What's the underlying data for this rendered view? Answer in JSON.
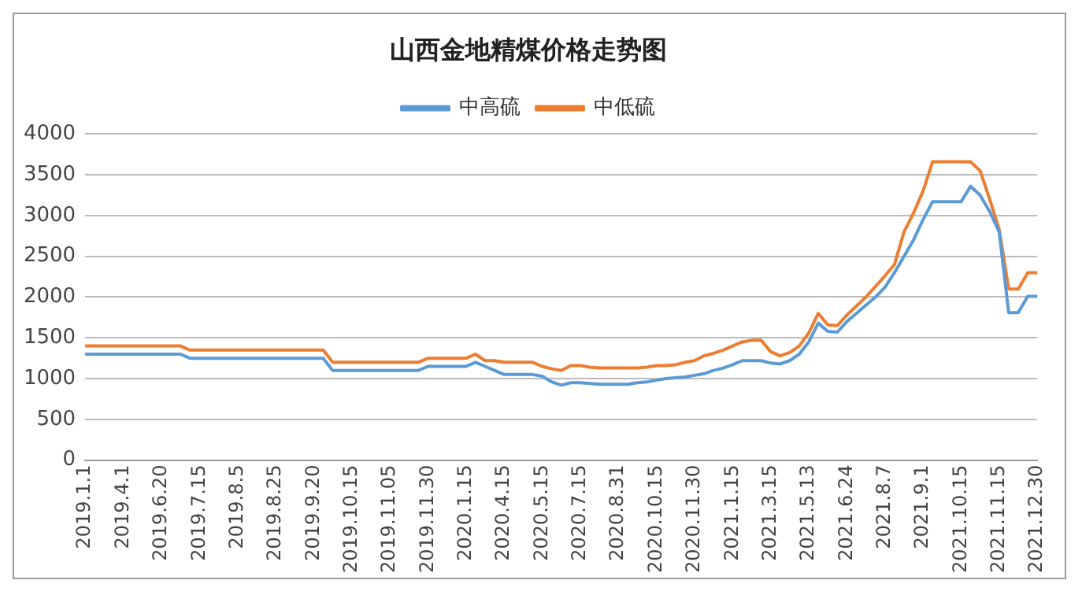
{
  "chart_data": {
    "type": "line",
    "title": "山西金地精煤价格走势图",
    "categories": [
      "2019.1.1",
      null,
      null,
      null,
      "2019.4.1",
      null,
      null,
      null,
      "2019.6.20",
      null,
      null,
      null,
      "2019.7.15",
      null,
      null,
      null,
      "2019.8.5",
      null,
      null,
      null,
      "2019.8.25",
      null,
      null,
      null,
      "2019.9.20",
      null,
      null,
      null,
      "2019.10.15",
      null,
      null,
      null,
      "2019.11.05",
      null,
      null,
      null,
      "2019.11.30",
      null,
      null,
      null,
      "2020.1.15",
      null,
      null,
      null,
      "2020.4.15",
      null,
      null,
      null,
      "2020.5.15",
      null,
      null,
      null,
      "2020.7.15",
      null,
      null,
      null,
      "2020.8.31",
      null,
      null,
      null,
      "2020.10.15",
      null,
      null,
      null,
      "2020.11.30",
      null,
      null,
      null,
      "2021.1.15",
      null,
      null,
      null,
      "2021.3.15",
      null,
      null,
      null,
      "2021.5.13",
      null,
      null,
      null,
      "2021.6.24",
      null,
      null,
      null,
      "2021.8.7",
      null,
      null,
      null,
      "2021.9.1",
      null,
      null,
      null,
      "2021.10.15",
      null,
      null,
      null,
      "2021.11.15",
      null,
      null,
      null,
      "2021.12.30"
    ],
    "series": [
      {
        "name": "中高硫",
        "color": "#5b9bd5",
        "values": [
          1300,
          1300,
          1300,
          1300,
          1300,
          1300,
          1300,
          1300,
          1300,
          1300,
          1300,
          1250,
          1250,
          1250,
          1250,
          1250,
          1250,
          1250,
          1250,
          1250,
          1250,
          1250,
          1250,
          1250,
          1250,
          1250,
          1100,
          1100,
          1100,
          1100,
          1100,
          1100,
          1100,
          1100,
          1100,
          1100,
          1150,
          1150,
          1150,
          1150,
          1150,
          1200,
          1150,
          1100,
          1050,
          1050,
          1050,
          1050,
          1030,
          960,
          920,
          950,
          950,
          940,
          930,
          930,
          930,
          930,
          950,
          960,
          980,
          1000,
          1010,
          1020,
          1040,
          1060,
          1100,
          1130,
          1170,
          1220,
          1220,
          1220,
          1190,
          1180,
          1220,
          1300,
          1450,
          1680,
          1580,
          1570,
          1700,
          1800,
          1900,
          2000,
          2120,
          2300,
          2500,
          2700,
          2950,
          3170,
          3170,
          3170,
          3170,
          3360,
          3250,
          3050,
          2800,
          1810,
          1810,
          2010,
          2010
        ]
      },
      {
        "name": "中低硫",
        "color": "#ed7d31",
        "values": [
          1400,
          1400,
          1400,
          1400,
          1400,
          1400,
          1400,
          1400,
          1400,
          1400,
          1400,
          1350,
          1350,
          1350,
          1350,
          1350,
          1350,
          1350,
          1350,
          1350,
          1350,
          1350,
          1350,
          1350,
          1350,
          1350,
          1200,
          1200,
          1200,
          1200,
          1200,
          1200,
          1200,
          1200,
          1200,
          1200,
          1250,
          1250,
          1250,
          1250,
          1250,
          1300,
          1220,
          1220,
          1200,
          1200,
          1200,
          1200,
          1150,
          1120,
          1100,
          1160,
          1160,
          1140,
          1130,
          1130,
          1130,
          1130,
          1130,
          1140,
          1160,
          1160,
          1170,
          1200,
          1220,
          1280,
          1310,
          1350,
          1400,
          1450,
          1470,
          1470,
          1330,
          1280,
          1320,
          1400,
          1560,
          1800,
          1660,
          1650,
          1780,
          1890,
          2000,
          2130,
          2260,
          2400,
          2800,
          3030,
          3300,
          3660,
          3660,
          3660,
          3660,
          3660,
          3550,
          3200,
          2830,
          2100,
          2100,
          2300,
          2300
        ]
      }
    ],
    "ylim": [
      0,
      4000
    ],
    "yticks": [
      0,
      500,
      1000,
      1500,
      2000,
      2500,
      3000,
      3500,
      4000
    ],
    "grid": "y",
    "legend": "top",
    "marker": "none",
    "line_style": "solid"
  }
}
